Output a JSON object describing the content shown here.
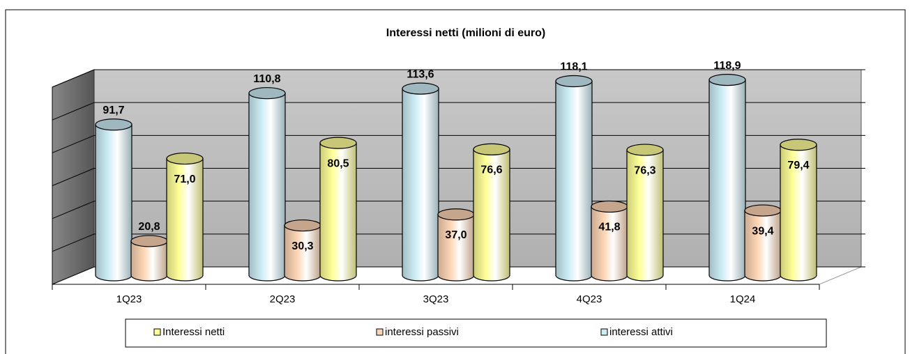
{
  "chart_data": {
    "type": "bar3d",
    "title": "Interessi netti (milioni di euro)",
    "categories": [
      "1Q23",
      "2Q23",
      "3Q23",
      "4Q23",
      "1Q24"
    ],
    "series": [
      {
        "name": "Interessi netti",
        "color": "#ffff99",
        "values": [
          71.0,
          80.5,
          76.6,
          76.3,
          79.4
        ],
        "value_labels": [
          "71,0",
          "80,5",
          "76,6",
          "76,3",
          "79,4"
        ]
      },
      {
        "name": "interessi passivi",
        "color": "#fcd5b4",
        "values": [
          20.8,
          30.3,
          37.0,
          41.8,
          39.4
        ],
        "value_labels": [
          "20,8",
          "30,3",
          "37,0",
          "41,8",
          "39,4"
        ]
      },
      {
        "name": "interessi attivi",
        "color": "#ccecf5",
        "values": [
          91.7,
          110.8,
          113.6,
          118.1,
          118.9
        ],
        "value_labels": [
          "91,7",
          "110,8",
          "113,6",
          "118,1",
          "118,9"
        ]
      }
    ],
    "ylim": [
      0,
      120
    ],
    "yticks": [
      0,
      20,
      40,
      60,
      80,
      100,
      120
    ],
    "grid": true,
    "legend": "bottom"
  }
}
